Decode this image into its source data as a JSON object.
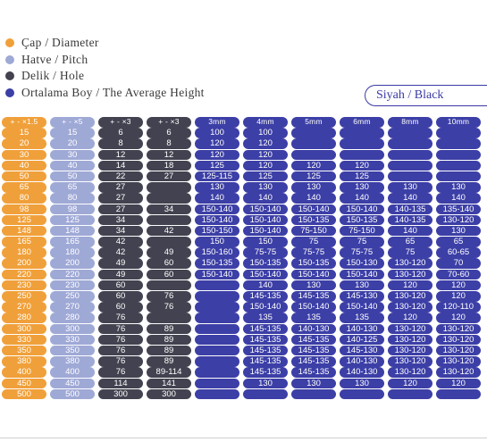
{
  "legend": [
    {
      "label": "Çap / Diameter",
      "color": "#f0a03a",
      "icon": "orange-dot-icon"
    },
    {
      "label": "Hatve / Pitch",
      "color": "#9fa9d6",
      "icon": "lavender-dot-icon"
    },
    {
      "label": "Delik / Hole",
      "color": "#424250",
      "icon": "dark-gray-dot-icon"
    },
    {
      "label": "Ortalama Boy / The Average Height",
      "color": "#3c3fa6",
      "icon": "blue-dot-icon"
    }
  ],
  "color_label": "Siyah / Black",
  "headers": [
    "+ - ×1.5",
    "+ - ×5",
    "+ - ×3",
    "+ - ×3",
    "3mm",
    "4mm",
    "5mm",
    "6mm",
    "8mm",
    "10mm"
  ],
  "rows": [
    [
      "15",
      "15",
      "6",
      "6",
      "100",
      "100",
      "",
      "",
      "",
      ""
    ],
    [
      "20",
      "20",
      "8",
      "8",
      "120",
      "120",
      "",
      "",
      "",
      ""
    ],
    [
      "30",
      "30",
      "12",
      "12",
      "120",
      "120",
      "",
      "",
      "",
      ""
    ],
    [
      "40",
      "40",
      "14",
      "18",
      "125",
      "120",
      "120",
      "120",
      "",
      ""
    ],
    [
      "50",
      "50",
      "22",
      "27",
      "125-115",
      "125",
      "125",
      "125",
      "",
      ""
    ],
    [
      "65",
      "65",
      "27",
      "",
      "130",
      "130",
      "130",
      "130",
      "130",
      "130"
    ],
    [
      "80",
      "80",
      "27",
      "",
      "140",
      "140",
      "140",
      "140",
      "140",
      "140"
    ],
    [
      "98",
      "98",
      "27",
      "34",
      "150-140",
      "150-140",
      "150-140",
      "150-140",
      "140-135",
      "135-140"
    ],
    [
      "125",
      "125",
      "34",
      "",
      "150-140",
      "150-140",
      "150-135",
      "150-135",
      "140-135",
      "130-120"
    ],
    [
      "148",
      "148",
      "34",
      "42",
      "150-150",
      "150-140",
      "75-150",
      "75-150",
      "140",
      "130"
    ],
    [
      "165",
      "165",
      "42",
      "",
      "150",
      "150",
      "75",
      "75",
      "65",
      "65"
    ],
    [
      "180",
      "180",
      "42",
      "49",
      "150-160",
      "75-75",
      "75-75",
      "75-75",
      "75",
      "60-65"
    ],
    [
      "200",
      "200",
      "49",
      "60",
      "150-135",
      "150-135",
      "150-135",
      "150-130",
      "130-120",
      "70"
    ],
    [
      "220",
      "220",
      "49",
      "60",
      "150-140",
      "150-140",
      "150-140",
      "150-140",
      "130-120",
      "70-60"
    ],
    [
      "230",
      "230",
      "60",
      "",
      "",
      "140",
      "130",
      "130",
      "120",
      "120"
    ],
    [
      "250",
      "250",
      "60",
      "76",
      "",
      "145-135",
      "145-135",
      "145-130",
      "130-120",
      "120"
    ],
    [
      "270",
      "270",
      "60",
      "76",
      "",
      "150-140",
      "150-140",
      "150-140",
      "130-120",
      "120-110"
    ],
    [
      "280",
      "280",
      "76",
      "",
      "",
      "135",
      "135",
      "135",
      "120",
      "120"
    ],
    [
      "300",
      "300",
      "76",
      "89",
      "",
      "145-135",
      "140-130",
      "140-130",
      "130-120",
      "130-120"
    ],
    [
      "330",
      "330",
      "76",
      "89",
      "",
      "145-135",
      "145-135",
      "140-125",
      "130-120",
      "130-120"
    ],
    [
      "350",
      "350",
      "76",
      "89",
      "",
      "145-135",
      "145-135",
      "145-130",
      "130-120",
      "130-120"
    ],
    [
      "380",
      "380",
      "76",
      "89",
      "",
      "145-135",
      "145-135",
      "140-130",
      "130-120",
      "130-120"
    ],
    [
      "400",
      "400",
      "76",
      "89-114",
      "",
      "145-135",
      "145-135",
      "140-130",
      "130-120",
      "130-120"
    ],
    [
      "450",
      "450",
      "114",
      "141",
      "",
      "130",
      "130",
      "130",
      "120",
      "120"
    ],
    [
      "500",
      "500",
      "300",
      "300",
      "",
      "",
      "",
      "",
      "",
      ""
    ]
  ]
}
